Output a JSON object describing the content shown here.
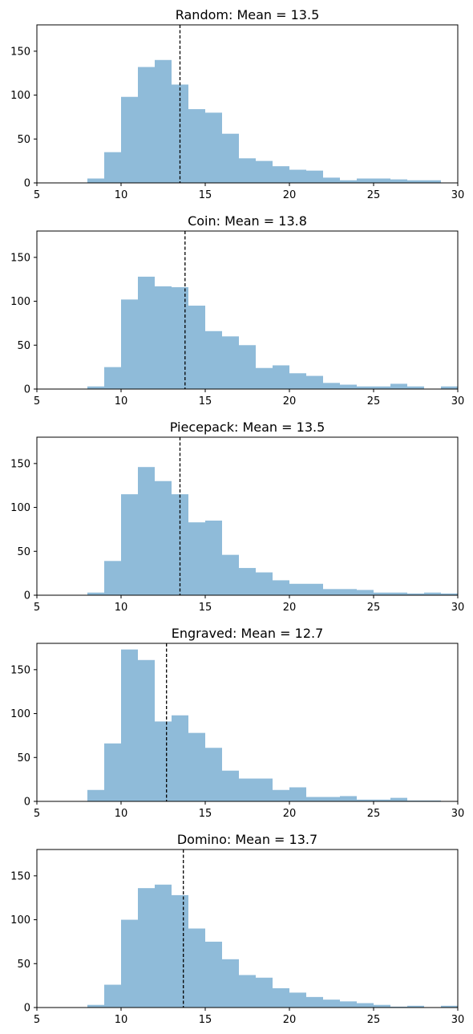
{
  "chart_data": [
    {
      "type": "bar",
      "title": "Random: Mean = 13.5",
      "mean": 13.5,
      "bin_edges": [
        8,
        9,
        10,
        11,
        12,
        13,
        14,
        15,
        16,
        17,
        18,
        19,
        20,
        21,
        22,
        23,
        24,
        25,
        26,
        27,
        28,
        29,
        30
      ],
      "values": [
        5,
        35,
        98,
        132,
        140,
        112,
        84,
        80,
        56,
        28,
        25,
        19,
        15,
        14,
        6,
        3,
        5,
        5,
        4,
        3,
        3,
        0
      ],
      "xlim": [
        5,
        30
      ],
      "ylim": [
        0,
        180
      ],
      "xticks": [
        5,
        10,
        15,
        20,
        25,
        30
      ],
      "yticks": [
        0,
        50,
        100,
        150
      ],
      "xlabel": "",
      "ylabel": "",
      "grid": false
    },
    {
      "type": "bar",
      "title": "Coin: Mean = 13.8",
      "mean": 13.8,
      "bin_edges": [
        8,
        9,
        10,
        11,
        12,
        13,
        14,
        15,
        16,
        17,
        18,
        19,
        20,
        21,
        22,
        23,
        24,
        25,
        26,
        27,
        28,
        29,
        30
      ],
      "values": [
        3,
        25,
        102,
        128,
        117,
        116,
        95,
        66,
        60,
        50,
        24,
        27,
        18,
        15,
        7,
        5,
        3,
        3,
        6,
        3,
        0,
        3
      ],
      "xlim": [
        5,
        30
      ],
      "ylim": [
        0,
        180
      ],
      "xticks": [
        5,
        10,
        15,
        20,
        25,
        30
      ],
      "yticks": [
        0,
        50,
        100,
        150
      ],
      "xlabel": "",
      "ylabel": "",
      "grid": false
    },
    {
      "type": "bar",
      "title": "Piecepack: Mean = 13.5",
      "mean": 13.5,
      "bin_edges": [
        8,
        9,
        10,
        11,
        12,
        13,
        14,
        15,
        16,
        17,
        18,
        19,
        20,
        21,
        22,
        23,
        24,
        25,
        26,
        27,
        28,
        29,
        30
      ],
      "values": [
        3,
        39,
        115,
        146,
        130,
        115,
        83,
        85,
        46,
        31,
        26,
        17,
        13,
        13,
        7,
        7,
        6,
        3,
        3,
        2,
        3,
        2
      ],
      "xlim": [
        5,
        30
      ],
      "ylim": [
        0,
        180
      ],
      "xticks": [
        5,
        10,
        15,
        20,
        25,
        30
      ],
      "yticks": [
        0,
        50,
        100,
        150
      ],
      "xlabel": "",
      "ylabel": "",
      "grid": false
    },
    {
      "type": "bar",
      "title": "Engraved: Mean = 12.7",
      "mean": 12.7,
      "bin_edges": [
        8,
        9,
        10,
        11,
        12,
        13,
        14,
        15,
        16,
        17,
        18,
        19,
        20,
        21,
        22,
        23,
        24,
        25,
        26,
        27,
        28,
        29,
        30
      ],
      "values": [
        13,
        66,
        173,
        161,
        91,
        98,
        78,
        61,
        35,
        26,
        26,
        13,
        16,
        5,
        5,
        6,
        2,
        2,
        4,
        1,
        1,
        0
      ],
      "xlim": [
        5,
        30
      ],
      "ylim": [
        0,
        180
      ],
      "xticks": [
        5,
        10,
        15,
        20,
        25,
        30
      ],
      "yticks": [
        0,
        50,
        100,
        150
      ],
      "xlabel": "",
      "ylabel": "",
      "grid": false
    },
    {
      "type": "bar",
      "title": "Domino: Mean = 13.7",
      "mean": 13.7,
      "bin_edges": [
        8,
        9,
        10,
        11,
        12,
        13,
        14,
        15,
        16,
        17,
        18,
        19,
        20,
        21,
        22,
        23,
        24,
        25,
        26,
        27,
        28,
        29,
        30
      ],
      "values": [
        3,
        26,
        100,
        136,
        140,
        128,
        90,
        75,
        55,
        37,
        34,
        22,
        17,
        12,
        9,
        7,
        5,
        3,
        1,
        2,
        0,
        2
      ],
      "xlim": [
        5,
        30
      ],
      "ylim": [
        0,
        180
      ],
      "xticks": [
        5,
        10,
        15,
        20,
        25,
        30
      ],
      "yticks": [
        0,
        50,
        100,
        150
      ],
      "xlabel": "",
      "ylabel": "",
      "grid": false
    }
  ],
  "colors": {
    "bar_fill": "#1f77b4",
    "bar_opacity": "0.5",
    "mean_line": "#000000",
    "frame": "#000000"
  }
}
